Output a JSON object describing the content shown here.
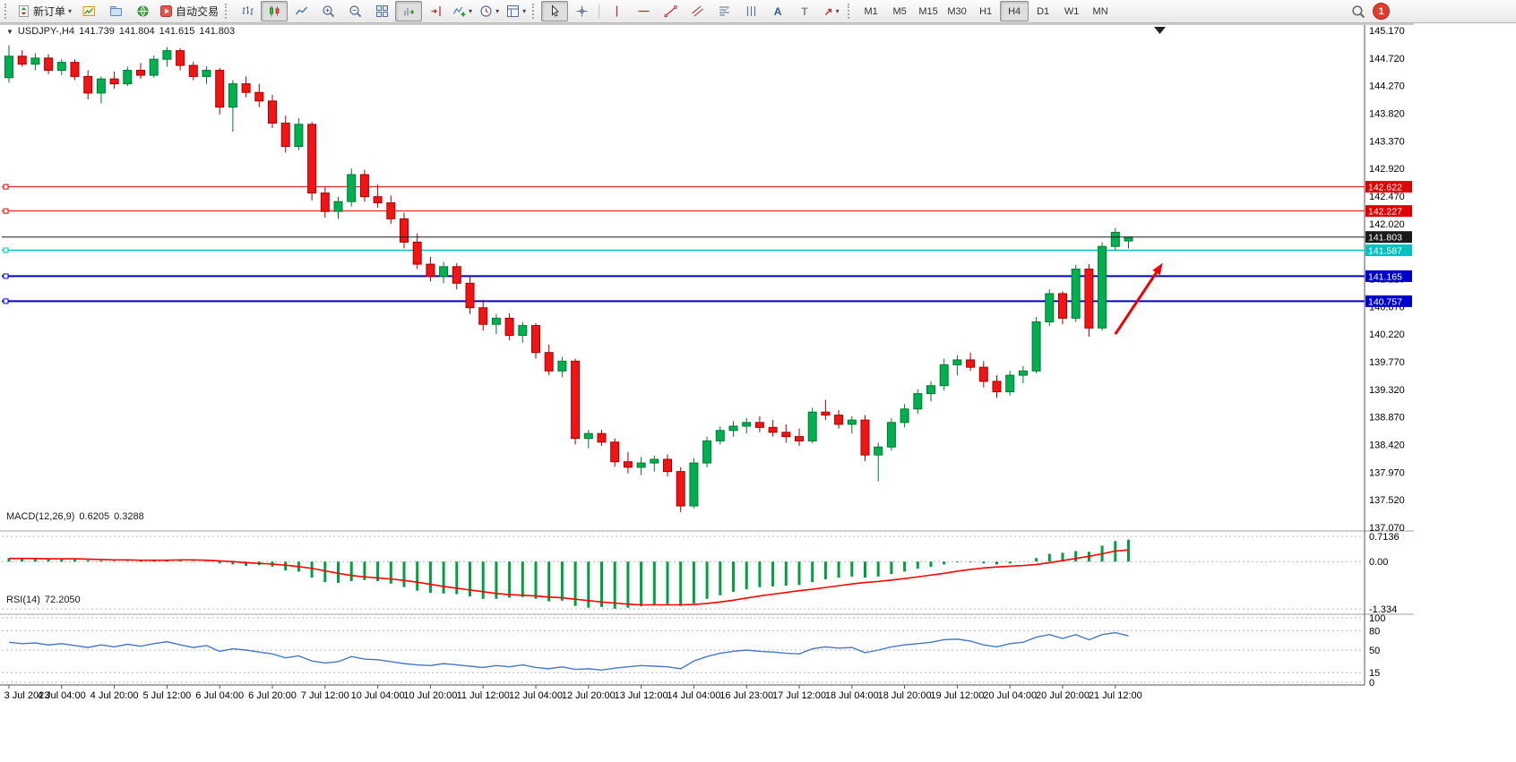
{
  "toolbar": {
    "new_order_label": "新订单",
    "autotrading_label": "自动交易",
    "timeframes": [
      "M1",
      "M5",
      "M15",
      "M30",
      "H1",
      "H4",
      "D1",
      "W1",
      "MN"
    ],
    "active_timeframe": "H4",
    "notification_count": "1",
    "glyphs": {
      "caret": "▾",
      "text_a": "A",
      "text_label": "T",
      "arrow_ne": "↗",
      "collapse": "▼"
    }
  },
  "colors": {
    "bull_fill": "#00b050",
    "bull_stroke": "#007a30",
    "bear_fill": "#f21414",
    "bear_stroke": "#a80000",
    "macd_hist": "#00a040",
    "macd_signal": "#ff0000",
    "rsi_line": "#4579c8",
    "grid": "#b8b8b8",
    "axis": "#555555",
    "current_price": "#1a1a1a"
  },
  "chart_data": [
    {
      "type": "candlestick",
      "symbol": "USDJPY-",
      "period": "H4",
      "header": {
        "symbol_period": "USDJPY-,H4",
        "open": "141.739",
        "high": "141.804",
        "low": "141.615",
        "close": "141.803"
      },
      "ylim": [
        137.07,
        145.17
      ],
      "y_ticks": [
        "145.170",
        "144.720",
        "144.270",
        "143.820",
        "143.370",
        "142.920",
        "142.470",
        "142.020",
        "141.570",
        "141.120",
        "140.670",
        "140.220",
        "139.770",
        "139.320",
        "138.870",
        "138.420",
        "137.970",
        "137.520",
        "137.070"
      ],
      "x_labels": [
        "3 Jul 2023",
        "4 Jul 04:00",
        "4 Jul 20:00",
        "5 Jul 12:00",
        "6 Jul 04:00",
        "6 Jul 20:00",
        "7 Jul 12:00",
        "10 Jul 04:00",
        "10 Jul 20:00",
        "11 Jul 12:00",
        "12 Jul 04:00",
        "12 Jul 20:00",
        "13 Jul 12:00",
        "14 Jul 04:00",
        "16 Jul 23:00",
        "17 Jul 12:00",
        "18 Jul 04:00",
        "18 Jul 20:00",
        "19 Jul 12:00",
        "20 Jul 04:00",
        "20 Jul 20:00",
        "21 Jul 12:00"
      ],
      "x_label_step": 4,
      "ohlc": [
        [
          144.4,
          144.93,
          144.32,
          144.75
        ],
        [
          144.75,
          144.85,
          144.58,
          144.62
        ],
        [
          144.62,
          144.8,
          144.52,
          144.72
        ],
        [
          144.72,
          144.78,
          144.46,
          144.52
        ],
        [
          144.52,
          144.7,
          144.44,
          144.65
        ],
        [
          144.65,
          144.7,
          144.36,
          144.42
        ],
        [
          144.42,
          144.52,
          144.05,
          144.15
        ],
        [
          144.15,
          144.42,
          143.98,
          144.38
        ],
        [
          144.38,
          144.5,
          144.22,
          144.3
        ],
        [
          144.3,
          144.58,
          144.26,
          144.52
        ],
        [
          144.52,
          144.64,
          144.38,
          144.44
        ],
        [
          144.44,
          144.76,
          144.4,
          144.7
        ],
        [
          144.7,
          144.9,
          144.58,
          144.84
        ],
        [
          144.84,
          144.88,
          144.52,
          144.6
        ],
        [
          144.6,
          144.66,
          144.36,
          144.42
        ],
        [
          144.42,
          144.58,
          144.3,
          144.52
        ],
        [
          144.52,
          144.56,
          143.8,
          143.92
        ],
        [
          143.92,
          144.36,
          143.52,
          144.3
        ],
        [
          144.3,
          144.42,
          144.08,
          144.16
        ],
        [
          144.16,
          144.3,
          143.92,
          144.02
        ],
        [
          144.02,
          144.12,
          143.58,
          143.66
        ],
        [
          143.66,
          143.78,
          143.18,
          143.28
        ],
        [
          143.28,
          143.74,
          143.22,
          143.64
        ],
        [
          143.64,
          143.68,
          142.4,
          142.52
        ],
        [
          142.52,
          142.62,
          142.12,
          142.22
        ],
        [
          142.22,
          142.46,
          142.1,
          142.38
        ],
        [
          142.38,
          142.92,
          142.3,
          142.82
        ],
        [
          142.82,
          142.9,
          142.38,
          142.46
        ],
        [
          142.46,
          142.66,
          142.28,
          142.36
        ],
        [
          142.36,
          142.48,
          142.02,
          142.1
        ],
        [
          142.1,
          142.2,
          141.62,
          141.72
        ],
        [
          141.72,
          141.86,
          141.28,
          141.36
        ],
        [
          141.36,
          141.48,
          141.08,
          141.16
        ],
        [
          141.16,
          141.4,
          141.05,
          141.32
        ],
        [
          141.32,
          141.38,
          140.95,
          141.05
        ],
        [
          141.05,
          141.18,
          140.55,
          140.65
        ],
        [
          140.65,
          140.78,
          140.28,
          140.38
        ],
        [
          140.38,
          140.55,
          140.22,
          140.48
        ],
        [
          140.48,
          140.56,
          140.12,
          140.2
        ],
        [
          140.2,
          140.42,
          140.08,
          140.36
        ],
        [
          140.36,
          140.4,
          139.82,
          139.92
        ],
        [
          139.92,
          140.05,
          139.55,
          139.62
        ],
        [
          139.62,
          139.85,
          139.52,
          139.78
        ],
        [
          139.78,
          139.82,
          138.42,
          138.52
        ],
        [
          138.52,
          138.66,
          138.36,
          138.6
        ],
        [
          138.6,
          138.66,
          138.4,
          138.46
        ],
        [
          138.46,
          138.52,
          138.06,
          138.14
        ],
        [
          138.14,
          138.3,
          137.95,
          138.05
        ],
        [
          138.05,
          138.22,
          137.92,
          138.12
        ],
        [
          138.12,
          138.24,
          137.98,
          138.18
        ],
        [
          138.18,
          138.26,
          137.9,
          137.98
        ],
        [
          137.98,
          138.05,
          137.32,
          137.42
        ],
        [
          137.42,
          138.2,
          137.38,
          138.12
        ],
        [
          138.12,
          138.55,
          138.05,
          138.48
        ],
        [
          138.48,
          138.72,
          138.42,
          138.65
        ],
        [
          138.65,
          138.8,
          138.55,
          138.72
        ],
        [
          138.72,
          138.85,
          138.6,
          138.78
        ],
        [
          138.78,
          138.88,
          138.62,
          138.7
        ],
        [
          138.7,
          138.82,
          138.55,
          138.62
        ],
        [
          138.62,
          138.75,
          138.45,
          138.55
        ],
        [
          138.55,
          138.68,
          138.4,
          138.48
        ],
        [
          138.48,
          139.02,
          138.44,
          138.95
        ],
        [
          138.95,
          139.15,
          138.82,
          138.9
        ],
        [
          138.9,
          138.98,
          138.68,
          138.75
        ],
        [
          138.75,
          138.88,
          138.6,
          138.82
        ],
        [
          138.82,
          138.9,
          138.15,
          138.25
        ],
        [
          138.25,
          138.45,
          137.82,
          138.38
        ],
        [
          138.38,
          138.85,
          138.32,
          138.78
        ],
        [
          138.78,
          139.08,
          138.7,
          139.0
        ],
        [
          139.0,
          139.32,
          138.92,
          139.25
        ],
        [
          139.25,
          139.45,
          139.12,
          139.38
        ],
        [
          139.38,
          139.82,
          139.3,
          139.72
        ],
        [
          139.72,
          139.88,
          139.55,
          139.8
        ],
        [
          139.8,
          139.92,
          139.62,
          139.68
        ],
        [
          139.68,
          139.78,
          139.35,
          139.45
        ],
        [
          139.45,
          139.55,
          139.18,
          139.28
        ],
        [
          139.28,
          139.62,
          139.22,
          139.55
        ],
        [
          139.55,
          139.7,
          139.42,
          139.62
        ],
        [
          139.62,
          140.5,
          139.58,
          140.42
        ],
        [
          140.42,
          140.95,
          140.35,
          140.88
        ],
        [
          140.88,
          140.92,
          140.38,
          140.48
        ],
        [
          140.48,
          141.35,
          140.42,
          141.28
        ],
        [
          141.28,
          141.36,
          140.18,
          140.32
        ],
        [
          140.32,
          141.72,
          140.28,
          141.65
        ],
        [
          141.65,
          141.95,
          141.58,
          141.88
        ],
        [
          141.739,
          141.804,
          141.615,
          141.803
        ]
      ],
      "hlines": [
        {
          "price": 142.622,
          "label": "142.622",
          "color": "#e00000",
          "width": 1
        },
        {
          "price": 142.227,
          "label": "142.227",
          "color": "#e00000",
          "width": 1
        },
        {
          "price": 141.587,
          "label": "141.587",
          "color": "#00c2c2",
          "width": 1.5
        },
        {
          "price": 141.165,
          "label": "141.165",
          "color": "#0000cc",
          "width": 2
        },
        {
          "price": 140.757,
          "label": "140.757",
          "color": "#0000cc",
          "width": 2
        }
      ],
      "current_price": {
        "price": 141.803,
        "label": "141.803",
        "color": "#1a1a1a"
      },
      "arrow": {
        "from_bar": 84,
        "from_price": 140.22,
        "to_bar": 87.6,
        "to_price": 141.38,
        "color": "#f00000"
      }
    },
    {
      "type": "bar",
      "header": {
        "label": "MACD(12,26,9)",
        "main": "0.6205",
        "signal": "0.3288"
      },
      "ylim": [
        -1.334,
        0.7136
      ],
      "y_ticks": [
        {
          "v": 0.7136,
          "t": "0.7136"
        },
        {
          "v": 0,
          "t": "0.00"
        },
        {
          "v": -1.334,
          "t": "-1.334"
        }
      ],
      "values": [
        0.1,
        0.09,
        0.08,
        0.08,
        0.07,
        0.06,
        0.04,
        0.03,
        0.02,
        0.02,
        0.03,
        0.04,
        0.06,
        0.05,
        0.02,
        0.01,
        -0.05,
        -0.08,
        -0.12,
        -0.1,
        -0.14,
        -0.25,
        -0.28,
        -0.45,
        -0.58,
        -0.6,
        -0.55,
        -0.52,
        -0.55,
        -0.62,
        -0.72,
        -0.82,
        -0.88,
        -0.9,
        -0.92,
        -0.98,
        -1.05,
        -1.05,
        -1.02,
        -1.0,
        -1.05,
        -1.12,
        -1.1,
        -1.25,
        -1.3,
        -1.28,
        -1.33,
        -1.3,
        -1.26,
        -1.22,
        -1.2,
        -1.25,
        -1.18,
        -1.05,
        -0.95,
        -0.85,
        -0.78,
        -0.72,
        -0.7,
        -0.68,
        -0.66,
        -0.58,
        -0.5,
        -0.45,
        -0.42,
        -0.45,
        -0.42,
        -0.35,
        -0.28,
        -0.2,
        -0.15,
        -0.08,
        -0.02,
        -0.02,
        -0.05,
        -0.08,
        -0.05,
        0.0,
        0.1,
        0.22,
        0.25,
        0.3,
        0.28,
        0.45,
        0.58,
        0.6205
      ],
      "signal_line": [
        0.09,
        0.09,
        0.09,
        0.08,
        0.08,
        0.08,
        0.07,
        0.06,
        0.05,
        0.05,
        0.04,
        0.04,
        0.04,
        0.05,
        0.05,
        0.04,
        0.02,
        0.0,
        -0.03,
        -0.05,
        -0.07,
        -0.1,
        -0.14,
        -0.19,
        -0.26,
        -0.33,
        -0.39,
        -0.43,
        -0.46,
        -0.49,
        -0.53,
        -0.58,
        -0.64,
        -0.7,
        -0.75,
        -0.8,
        -0.85,
        -0.9,
        -0.93,
        -0.95,
        -0.97,
        -1.0,
        -1.02,
        -1.06,
        -1.1,
        -1.14,
        -1.17,
        -1.2,
        -1.22,
        -1.22,
        -1.22,
        -1.22,
        -1.21,
        -1.18,
        -1.14,
        -1.09,
        -1.03,
        -0.97,
        -0.92,
        -0.87,
        -0.82,
        -0.78,
        -0.73,
        -0.68,
        -0.63,
        -0.59,
        -0.56,
        -0.52,
        -0.48,
        -0.43,
        -0.38,
        -0.33,
        -0.27,
        -0.22,
        -0.18,
        -0.15,
        -0.13,
        -0.11,
        -0.08,
        -0.03,
        0.03,
        0.09,
        0.15,
        0.22,
        0.3,
        0.3288
      ]
    },
    {
      "type": "line",
      "header": {
        "label": "RSI(14)",
        "value": "72.2050"
      },
      "ylim": [
        0,
        100
      ],
      "levels": [
        {
          "v": 100,
          "t": "100"
        },
        {
          "v": 80,
          "t": "80"
        },
        {
          "v": 50,
          "t": "50"
        },
        {
          "v": 15,
          "t": "15"
        },
        {
          "v": 0,
          "t": "0"
        }
      ],
      "values": [
        62,
        60,
        61,
        58,
        60,
        57,
        54,
        58,
        55,
        59,
        56,
        60,
        63,
        58,
        54,
        57,
        48,
        52,
        50,
        47,
        44,
        38,
        41,
        33,
        30,
        32,
        40,
        36,
        35,
        32,
        29,
        27,
        26,
        29,
        27,
        25,
        23,
        26,
        24,
        27,
        23,
        21,
        24,
        20,
        21,
        19,
        22,
        24,
        26,
        25,
        24,
        21,
        33,
        40,
        45,
        48,
        50,
        48,
        47,
        45,
        44,
        52,
        55,
        53,
        54,
        46,
        50,
        55,
        58,
        60,
        62,
        66,
        67,
        64,
        58,
        55,
        60,
        62,
        70,
        74,
        68,
        74,
        66,
        74,
        77,
        72.2
      ]
    }
  ]
}
